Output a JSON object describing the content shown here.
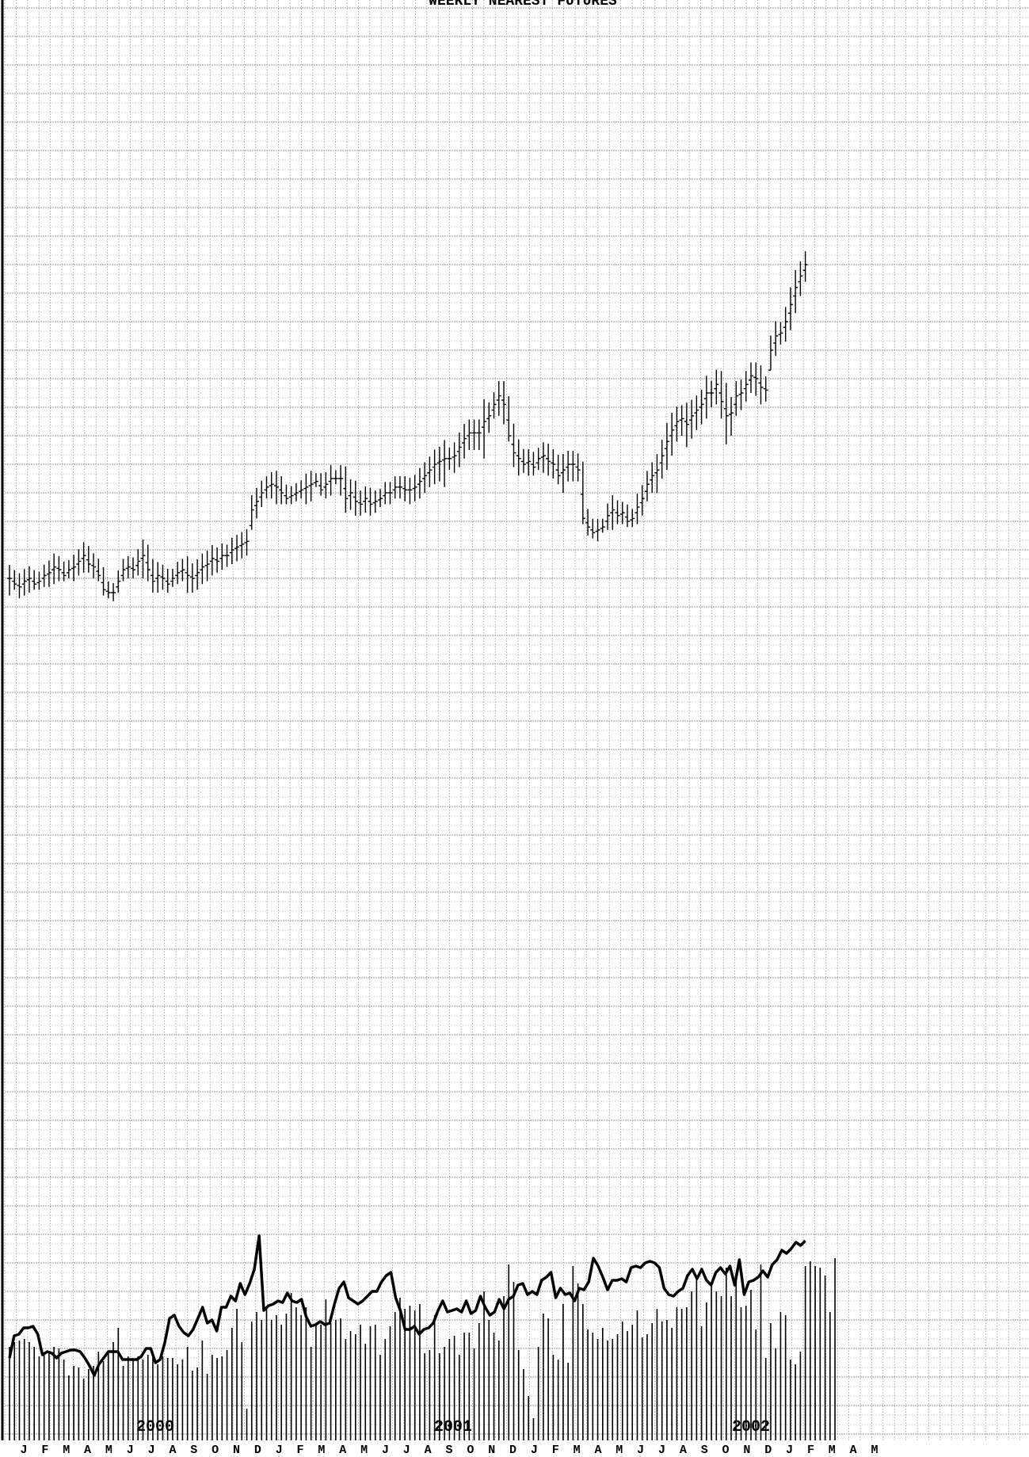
{
  "chart_title": "WEEKLY NEAREST FUTURES",
  "x_axis": {
    "months": [
      "J",
      "F",
      "M",
      "A",
      "M",
      "J",
      "J",
      "A",
      "S",
      "O",
      "N",
      "D",
      "J",
      "F",
      "M",
      "A",
      "M",
      "J",
      "J",
      "A",
      "S",
      "O",
      "N",
      "D",
      "J",
      "F",
      "M",
      "A",
      "M",
      "J",
      "J",
      "A",
      "S",
      "O",
      "N",
      "D",
      "J",
      "F",
      "M",
      "A",
      "M"
    ],
    "years": [
      "2000",
      "2001",
      "2002"
    ]
  },
  "colors": {
    "background": "#ffffff",
    "grid": "#9a9a9a",
    "ink": "#000000"
  },
  "chart_data": [
    {
      "type": "ohlc",
      "title": "WEEKLY NEAREST FUTURES",
      "frequency": "weekly",
      "close": [
        100,
        98,
        97,
        99,
        100,
        98,
        99,
        101,
        102,
        104,
        103,
        101,
        103,
        104,
        106,
        108,
        105,
        104,
        101,
        96,
        95,
        95,
        99,
        103,
        104,
        103,
        106,
        108,
        103,
        99,
        101,
        100,
        98,
        100,
        102,
        103,
        101,
        100,
        102,
        104,
        105,
        107,
        106,
        108,
        108,
        110,
        111,
        112,
        113,
        124,
        127,
        130,
        132,
        133,
        132,
        130,
        128,
        129,
        130,
        131,
        132,
        133,
        134,
        131,
        133,
        135,
        135,
        135,
        128,
        130,
        127,
        126,
        128,
        126,
        127,
        128,
        130,
        130,
        132,
        132,
        131,
        131,
        132,
        134,
        136,
        138,
        140,
        141,
        142,
        142,
        143,
        146,
        149,
        151,
        151,
        151,
        155,
        157,
        161,
        164,
        161,
        150,
        144,
        142,
        140,
        141,
        139,
        142,
        143,
        141,
        140,
        136,
        138,
        140,
        140,
        138,
        121,
        118,
        116,
        117,
        118,
        122,
        124,
        122,
        123,
        120,
        121,
        125,
        128,
        133,
        136,
        138,
        143,
        148,
        152,
        155,
        156,
        154,
        157,
        159,
        161,
        165,
        165,
        168,
        162,
        157,
        158,
        164,
        165,
        168,
        171,
        170,
        167,
        166,
        180,
        185,
        186,
        190,
        196,
        202,
        206,
        210
      ],
      "low": [
        94,
        96,
        93,
        94,
        95,
        96,
        96,
        97,
        97,
        98,
        99,
        99,
        100,
        99,
        101,
        102,
        102,
        100,
        99,
        94,
        93,
        92,
        95,
        99,
        100,
        100,
        101,
        100,
        99,
        95,
        95,
        96,
        95,
        97,
        98,
        99,
        95,
        95,
        96,
        98,
        99,
        101,
        102,
        103,
        104,
        105,
        106,
        107,
        108,
        117,
        121,
        125,
        128,
        128,
        126,
        126,
        126,
        126,
        127,
        128,
        126,
        127,
        132,
        129,
        128,
        129,
        133,
        129,
        123,
        124,
        122,
        122,
        123,
        122,
        123,
        125,
        126,
        126,
        128,
        128,
        127,
        126,
        127,
        128,
        130,
        132,
        133,
        134,
        132,
        138,
        137,
        139,
        142,
        145,
        145,
        145,
        142,
        151,
        156,
        157,
        154,
        148,
        139,
        136,
        137,
        136,
        136,
        138,
        137,
        136,
        135,
        133,
        130,
        134,
        134,
        134,
        119,
        115,
        114,
        113,
        116,
        117,
        117,
        119,
        119,
        118,
        118,
        119,
        122,
        127,
        130,
        130,
        135,
        138,
        143,
        148,
        150,
        146,
        149,
        152,
        154,
        156,
        160,
        161,
        156,
        147,
        150,
        157,
        159,
        162,
        165,
        164,
        161,
        162,
        173,
        178,
        182,
        183,
        187,
        193,
        199,
        204
      ]
    },
    {
      "type": "bar",
      "series": [
        {
          "values": [
            59,
            62,
            63,
            64,
            62,
            59,
            53,
            54,
            55,
            59,
            58,
            51,
            41,
            47,
            46,
            39,
            45,
            47,
            56,
            50,
            55,
            62,
            71,
            47,
            53,
            51,
            53,
            51,
            54,
            53,
            48,
            53,
            52,
            52,
            48,
            51,
            59,
            44,
            46,
            63,
            42,
            54,
            52,
            53,
            57,
            71,
            83,
            62,
            20,
            75,
            81,
            76,
            83,
            76,
            79,
            73,
            80,
            93,
            84,
            79,
            84,
            59,
            73,
            73,
            89,
            74,
            76,
            77,
            64,
            69,
            67,
            73,
            61,
            72,
            73,
            54,
            64,
            72,
            81,
            90,
            83,
            85,
            82,
            86,
            55,
            57,
            79,
            55,
            59,
            64,
            66,
            54,
            68,
            68,
            58,
            74,
            94,
            76,
            68,
            63,
            91,
            111,
            100,
            57,
            45,
            28,
            14,
            59,
            80,
            77,
            54,
            51,
            86,
            49,
            110,
            99,
            86,
            70,
            68,
            64,
            71,
            63,
            64,
            67,
            75,
            69,
            73,
            82,
            65,
            67,
            74,
            83,
            75,
            76,
            71,
            84,
            83,
            84,
            94,
            102,
            72,
            87,
            99,
            94,
            91,
            109,
            91,
            101,
            84,
            85,
            95,
            70,
            111,
            52,
            74,
            58,
            81,
            79,
            51,
            48,
            56,
            110,
            113,
            110,
            109,
            104,
            81,
            115
          ]
        },
        {
          "values": [
            52,
            66,
            67,
            71,
            71,
            72,
            67,
            54,
            56,
            55,
            52,
            55,
            56,
            57,
            57,
            56,
            52,
            47,
            41,
            48,
            52,
            56,
            56,
            56,
            51,
            51,
            51,
            51,
            53,
            58,
            58,
            49,
            51,
            62,
            77,
            79,
            72,
            68,
            66,
            70,
            77,
            84,
            74,
            76,
            69,
            84,
            84,
            91,
            88,
            99,
            92,
            99,
            108,
            129,
            82,
            85,
            86,
            88,
            87,
            93,
            88,
            87,
            89,
            78,
            72,
            73,
            75,
            73,
            74,
            86,
            96,
            100,
            90,
            88,
            86,
            88,
            91,
            94,
            94,
            100,
            104,
            106,
            90,
            82,
            70,
            70,
            72,
            67,
            70,
            71,
            74,
            82,
            88,
            81,
            82,
            83,
            81,
            88,
            80,
            82,
            91,
            84,
            79,
            81,
            89,
            83,
            89,
            91,
            98,
            99,
            92,
            94,
            92,
            101,
            103,
            106,
            90,
            96,
            92,
            93,
            88,
            96,
            95,
            100,
            115,
            110,
            103,
            95,
            101,
            101,
            102,
            100,
            109,
            110,
            109,
            112,
            113,
            112,
            109,
            96,
            92,
            91,
            94,
            96,
            104,
            108,
            102,
            108,
            101,
            98,
            106,
            109,
            105,
            110,
            98,
            114,
            92,
            100,
            101,
            103,
            107,
            103,
            111,
            114,
            120,
            118,
            121,
            125,
            123,
            126
          ]
        }
      ]
    }
  ]
}
